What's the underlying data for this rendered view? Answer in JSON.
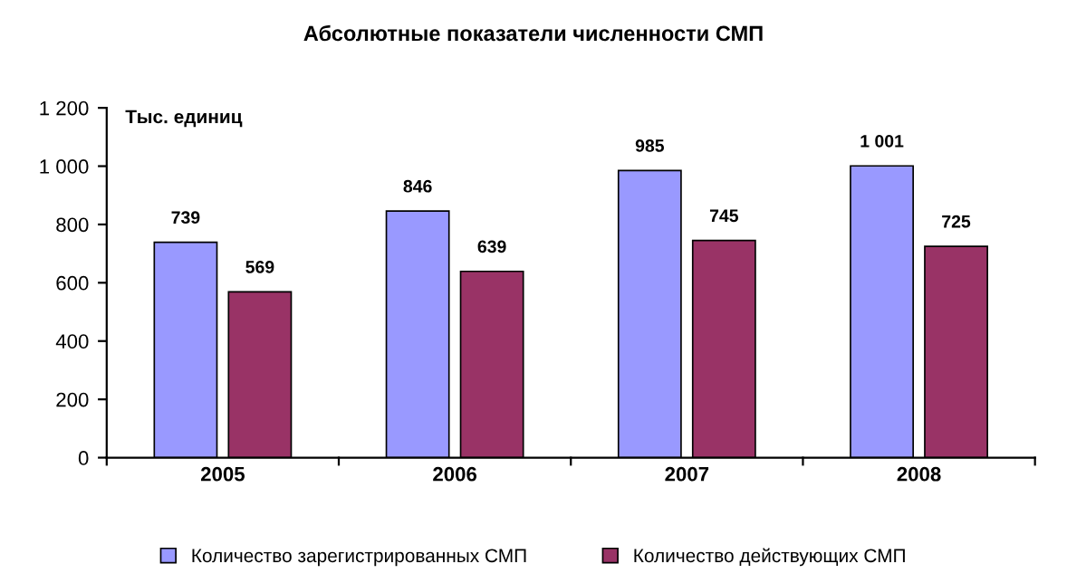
{
  "chart_data": {
    "type": "bar",
    "title": "Абсолютные показатели численности СМП",
    "ylabel": "Тыс. единиц",
    "categories": [
      "2005",
      "2006",
      "2007",
      "2008"
    ],
    "series": [
      {
        "name": "Количество зарегистрированных СМП",
        "color": "#9999ff",
        "values": [
          739,
          846,
          985,
          1001
        ],
        "value_labels": [
          "739",
          "846",
          "985",
          "1 001"
        ]
      },
      {
        "name": "Количество действующих СМП",
        "color": "#993366",
        "values": [
          569,
          639,
          745,
          725
        ],
        "value_labels": [
          "569",
          "639",
          "745",
          "725"
        ]
      }
    ],
    "ylim": [
      0,
      1200
    ],
    "yticks": [
      0,
      200,
      400,
      600,
      800,
      {
        "value": 1000,
        "label": "1 000"
      },
      {
        "value": 1200,
        "label": "1 200"
      }
    ],
    "grid": false,
    "legend": "bottom"
  }
}
